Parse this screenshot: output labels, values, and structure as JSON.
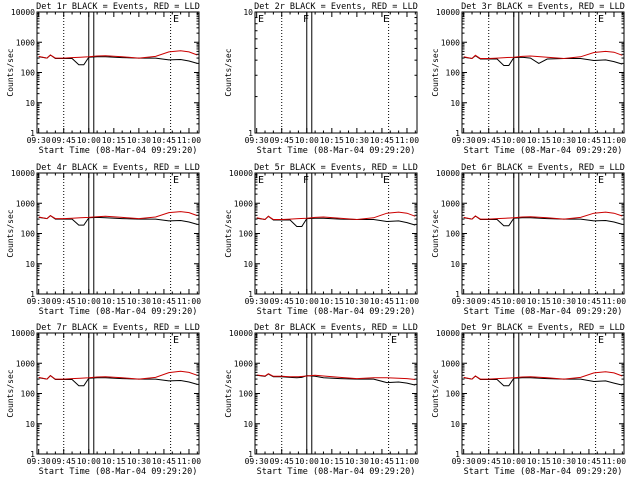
{
  "chart_data": [
    {
      "type": "line",
      "title": "Det 1r BLACK = Events, RED = LLD",
      "xlabel": "Start Time (08-Mar-04 09:29:20)",
      "ylabel": "Counts/sec",
      "yscale": "log",
      "ylim": [
        1,
        10000
      ],
      "y_ticks": [
        "1",
        "10",
        "100",
        "1000",
        "10000"
      ],
      "x_ticks": [
        "09:30",
        "09:45",
        "10:00",
        "10:15",
        "10:30",
        "10:45",
        "11:00"
      ],
      "vlines_dotted": [
        "09:45",
        "10:49"
      ],
      "vlines_solid": [
        "10:00",
        "10:03"
      ],
      "flags": [
        "E"
      ],
      "series": [
        {
          "color": "#000000",
          "x": [
            "09:30",
            "09:35",
            "09:37",
            "09:40",
            "09:45",
            "09:50",
            "09:54",
            "09:57",
            "10:00",
            "10:05",
            "10:10",
            "10:20",
            "10:30",
            "10:40",
            "10:48",
            "10:55",
            "11:00",
            "11:05"
          ],
          "values": [
            330,
            300,
            380,
            290,
            290,
            290,
            180,
            180,
            320,
            330,
            330,
            310,
            300,
            300,
            260,
            270,
            240,
            200
          ]
        },
        {
          "color": "#cc0000",
          "x": [
            "09:30",
            "09:35",
            "09:37",
            "09:40",
            "09:45",
            "09:50",
            "09:55",
            "10:00",
            "10:05",
            "10:10",
            "10:20",
            "10:30",
            "10:40",
            "10:48",
            "10:55",
            "11:00",
            "11:05"
          ],
          "values": [
            340,
            300,
            380,
            300,
            300,
            310,
            320,
            330,
            350,
            360,
            330,
            300,
            340,
            480,
            520,
            480,
            380
          ]
        }
      ]
    },
    {
      "type": "line",
      "title": "Det 2r BLACK = Events, RED = LLD",
      "xlabel": "Start Time (08-Mar-04 09:29:20)",
      "ylabel": "Counts/sec",
      "yscale": "log",
      "ylim": [
        1,
        10
      ],
      "y_ticks": [
        "1",
        "10"
      ],
      "x_ticks": [
        "09:30",
        "09:45",
        "10:00",
        "10:15",
        "10:30",
        "10:45",
        "11:00"
      ],
      "vlines_dotted": [
        "09:45",
        "10:49"
      ],
      "vlines_solid": [
        "10:00",
        "10:03"
      ],
      "flags": [
        "E",
        "F",
        "E"
      ],
      "series": []
    },
    {
      "type": "line",
      "title": "Det 3r BLACK = Events, RED = LLD",
      "xlabel": "Start Time (08-Mar-04 09:29:20)",
      "ylabel": "Counts/sec",
      "yscale": "log",
      "ylim": [
        1,
        10000
      ],
      "y_ticks": [
        "1",
        "10",
        "100",
        "1000",
        "10000"
      ],
      "x_ticks": [
        "09:30",
        "09:45",
        "10:00",
        "10:15",
        "10:30",
        "10:45",
        "11:00"
      ],
      "vlines_dotted": [
        "09:45",
        "10:49"
      ],
      "vlines_solid": [
        "10:00",
        "10:03"
      ],
      "flags": [
        "E"
      ],
      "series": [
        {
          "color": "#000000",
          "x": [
            "09:30",
            "09:35",
            "09:37",
            "09:40",
            "09:45",
            "09:50",
            "09:54",
            "09:57",
            "10:00",
            "10:05",
            "10:10",
            "10:15",
            "10:20",
            "10:30",
            "10:40",
            "10:48",
            "10:55",
            "11:00",
            "11:05"
          ],
          "values": [
            320,
            290,
            360,
            280,
            280,
            280,
            170,
            170,
            310,
            320,
            300,
            200,
            280,
            290,
            290,
            250,
            260,
            230,
            190
          ]
        },
        {
          "color": "#cc0000",
          "x": [
            "09:30",
            "09:35",
            "09:37",
            "09:40",
            "09:45",
            "09:50",
            "09:55",
            "10:00",
            "10:05",
            "10:10",
            "10:20",
            "10:30",
            "10:40",
            "10:48",
            "10:55",
            "11:00",
            "11:05"
          ],
          "values": [
            330,
            290,
            370,
            290,
            290,
            300,
            310,
            320,
            340,
            350,
            320,
            290,
            330,
            460,
            500,
            470,
            370
          ]
        }
      ]
    },
    {
      "type": "line",
      "title": "Det 4r BLACK = Events, RED = LLD",
      "xlabel": "Start Time (08-Mar-04 09:29:20)",
      "ylabel": "Counts/sec",
      "yscale": "log",
      "ylim": [
        1,
        10000
      ],
      "y_ticks": [
        "1",
        "10",
        "100",
        "1000",
        "10000"
      ],
      "x_ticks": [
        "09:30",
        "09:45",
        "10:00",
        "10:15",
        "10:30",
        "10:45",
        "11:00"
      ],
      "vlines_dotted": [
        "09:45",
        "10:49"
      ],
      "vlines_solid": [
        "10:00",
        "10:03"
      ],
      "flags": [
        "E"
      ],
      "series": [
        {
          "color": "#000000",
          "x": [
            "09:30",
            "09:35",
            "09:37",
            "09:40",
            "09:45",
            "09:50",
            "09:54",
            "09:57",
            "10:00",
            "10:05",
            "10:10",
            "10:20",
            "10:30",
            "10:40",
            "10:48",
            "10:55",
            "11:00",
            "11:05"
          ],
          "values": [
            340,
            310,
            390,
            300,
            300,
            300,
            190,
            190,
            330,
            340,
            330,
            310,
            300,
            300,
            260,
            270,
            240,
            200
          ]
        },
        {
          "color": "#cc0000",
          "x": [
            "09:30",
            "09:35",
            "09:37",
            "09:40",
            "09:45",
            "09:50",
            "09:55",
            "10:00",
            "10:05",
            "10:10",
            "10:20",
            "10:30",
            "10:40",
            "10:48",
            "10:55",
            "11:00",
            "11:05"
          ],
          "values": [
            350,
            310,
            390,
            310,
            310,
            320,
            330,
            340,
            360,
            370,
            340,
            310,
            350,
            490,
            530,
            490,
            390
          ]
        }
      ]
    },
    {
      "type": "line",
      "title": "Det 5r BLACK = Events, RED = LLD",
      "xlabel": "Start Time (08-Mar-04 09:29:20)",
      "ylabel": "Counts/sec",
      "yscale": "log",
      "ylim": [
        1,
        10000
      ],
      "y_ticks": [
        "1",
        "10",
        "100",
        "1000",
        "10000"
      ],
      "x_ticks": [
        "09:30",
        "09:45",
        "10:00",
        "10:15",
        "10:30",
        "10:45",
        "11:00"
      ],
      "vlines_dotted": [
        "09:45",
        "10:49"
      ],
      "vlines_solid": [
        "10:00",
        "10:03"
      ],
      "flags": [
        "E",
        "F",
        "E"
      ],
      "series": [
        {
          "color": "#000000",
          "x": [
            "09:30",
            "09:35",
            "09:37",
            "09:40",
            "09:45",
            "09:50",
            "09:54",
            "09:57",
            "10:00",
            "10:05",
            "10:10",
            "10:20",
            "10:30",
            "10:40",
            "10:48",
            "10:55",
            "11:00",
            "11:05"
          ],
          "values": [
            320,
            290,
            370,
            280,
            280,
            280,
            170,
            170,
            310,
            320,
            320,
            300,
            290,
            290,
            250,
            260,
            230,
            190
          ]
        },
        {
          "color": "#cc0000",
          "x": [
            "09:30",
            "09:35",
            "09:37",
            "09:40",
            "09:45",
            "09:50",
            "09:55",
            "10:00",
            "10:05",
            "10:10",
            "10:20",
            "10:30",
            "10:40",
            "10:48",
            "10:55",
            "11:00",
            "11:05"
          ],
          "values": [
            330,
            290,
            370,
            290,
            290,
            300,
            310,
            320,
            340,
            350,
            320,
            290,
            330,
            470,
            510,
            470,
            370
          ]
        }
      ]
    },
    {
      "type": "line",
      "title": "Det 6r BLACK = Events, RED = LLD",
      "xlabel": "Start Time (08-Mar-04 09:29:20)",
      "ylabel": "Counts/sec",
      "yscale": "log",
      "ylim": [
        1,
        10000
      ],
      "y_ticks": [
        "1",
        "10",
        "100",
        "1000",
        "10000"
      ],
      "x_ticks": [
        "09:30",
        "09:45",
        "10:00",
        "10:15",
        "10:30",
        "10:45",
        "11:00"
      ],
      "vlines_dotted": [
        "09:45",
        "10:49"
      ],
      "vlines_solid": [
        "10:00",
        "10:03"
      ],
      "flags": [
        "E"
      ],
      "series": [
        {
          "color": "#000000",
          "x": [
            "09:30",
            "09:35",
            "09:37",
            "09:40",
            "09:45",
            "09:50",
            "09:54",
            "09:57",
            "10:00",
            "10:05",
            "10:10",
            "10:20",
            "10:30",
            "10:40",
            "10:48",
            "10:55",
            "11:00",
            "11:05"
          ],
          "values": [
            330,
            300,
            380,
            290,
            290,
            290,
            180,
            180,
            320,
            330,
            330,
            310,
            300,
            300,
            260,
            270,
            240,
            200
          ]
        },
        {
          "color": "#cc0000",
          "x": [
            "09:30",
            "09:35",
            "09:37",
            "09:40",
            "09:45",
            "09:50",
            "09:55",
            "10:00",
            "10:05",
            "10:10",
            "10:20",
            "10:30",
            "10:40",
            "10:48",
            "10:55",
            "11:00",
            "11:05"
          ],
          "values": [
            340,
            300,
            380,
            300,
            300,
            310,
            320,
            330,
            350,
            360,
            330,
            300,
            340,
            470,
            510,
            470,
            380
          ]
        }
      ]
    },
    {
      "type": "line",
      "title": "Det 7r BLACK = Events, RED = LLD",
      "xlabel": "Start Time (08-Mar-04 09:29:20)",
      "ylabel": "Counts/sec",
      "yscale": "log",
      "ylim": [
        1,
        10000
      ],
      "y_ticks": [
        "1",
        "10",
        "100",
        "1000",
        "10000"
      ],
      "x_ticks": [
        "09:30",
        "09:45",
        "10:00",
        "10:15",
        "10:30",
        "10:45",
        "11:00"
      ],
      "vlines_dotted": [
        "09:45",
        "10:49"
      ],
      "vlines_solid": [
        "10:00",
        "10:03"
      ],
      "flags": [
        "E"
      ],
      "series": [
        {
          "color": "#000000",
          "x": [
            "09:30",
            "09:35",
            "09:37",
            "09:40",
            "09:45",
            "09:50",
            "09:54",
            "09:57",
            "10:00",
            "10:05",
            "10:10",
            "10:20",
            "10:30",
            "10:40",
            "10:48",
            "10:55",
            "11:00",
            "11:05"
          ],
          "values": [
            330,
            300,
            390,
            290,
            290,
            290,
            180,
            180,
            320,
            330,
            330,
            310,
            300,
            300,
            260,
            270,
            240,
            200
          ]
        },
        {
          "color": "#cc0000",
          "x": [
            "09:30",
            "09:35",
            "09:37",
            "09:40",
            "09:45",
            "09:50",
            "09:55",
            "10:00",
            "10:05",
            "10:10",
            "10:20",
            "10:30",
            "10:40",
            "10:48",
            "10:55",
            "11:00",
            "11:05"
          ],
          "values": [
            340,
            300,
            390,
            300,
            300,
            310,
            320,
            330,
            350,
            360,
            330,
            300,
            340,
            490,
            540,
            500,
            400
          ]
        }
      ]
    },
    {
      "type": "line",
      "title": "Det 8r BLACK = Events, RED = LLD",
      "xlabel": "Start Time (08-Mar-04 09:29:20)",
      "ylabel": "Counts/sec",
      "yscale": "log",
      "ylim": [
        1,
        10000
      ],
      "y_ticks": [
        "1",
        "10",
        "100",
        "1000",
        "10000"
      ],
      "x_ticks": [
        "09:30",
        "09:45",
        "10:00",
        "10:15",
        "10:30",
        "10:45",
        "11:00"
      ],
      "vlines_dotted": [
        "09:45",
        "10:49"
      ],
      "vlines_solid": [
        "10:00",
        "10:03"
      ],
      "flags": [
        "E"
      ],
      "series": [
        {
          "color": "#000000",
          "x": [
            "09:30",
            "09:35",
            "09:37",
            "09:40",
            "09:45",
            "09:50",
            "09:54",
            "09:57",
            "10:00",
            "10:05",
            "10:10",
            "10:20",
            "10:30",
            "10:40",
            "10:48",
            "10:55",
            "11:00",
            "11:05"
          ],
          "values": [
            400,
            370,
            440,
            360,
            360,
            340,
            330,
            340,
            390,
            370,
            330,
            310,
            300,
            300,
            230,
            240,
            220,
            190
          ]
        },
        {
          "color": "#cc0000",
          "x": [
            "09:30",
            "09:35",
            "09:37",
            "09:40",
            "09:45",
            "09:50",
            "09:55",
            "10:00",
            "10:05",
            "10:10",
            "10:20",
            "10:30",
            "10:40",
            "10:48",
            "10:55",
            "11:00",
            "11:05"
          ],
          "values": [
            410,
            380,
            450,
            370,
            370,
            360,
            360,
            380,
            400,
            380,
            340,
            310,
            330,
            330,
            320,
            310,
            290
          ]
        }
      ]
    },
    {
      "type": "line",
      "title": "Det 9r BLACK = Events, RED = LLD",
      "xlabel": "Start Time (08-Mar-04 09:29:20)",
      "ylabel": "Counts/sec",
      "yscale": "log",
      "ylim": [
        1,
        10000
      ],
      "y_ticks": [
        "1",
        "10",
        "100",
        "1000",
        "10000"
      ],
      "x_ticks": [
        "09:30",
        "09:45",
        "10:00",
        "10:15",
        "10:30",
        "10:45",
        "11:00"
      ],
      "vlines_dotted": [
        "09:45",
        "10:49"
      ],
      "vlines_solid": [
        "10:00",
        "10:03"
      ],
      "flags": [
        "E"
      ],
      "series": [
        {
          "color": "#000000",
          "x": [
            "09:30",
            "09:35",
            "09:37",
            "09:40",
            "09:45",
            "09:50",
            "09:54",
            "09:57",
            "10:00",
            "10:05",
            "10:10",
            "10:20",
            "10:30",
            "10:40",
            "10:48",
            "10:55",
            "11:00",
            "11:05"
          ],
          "values": [
            330,
            300,
            380,
            290,
            290,
            290,
            180,
            180,
            320,
            330,
            330,
            310,
            300,
            300,
            250,
            260,
            220,
            190
          ]
        },
        {
          "color": "#cc0000",
          "x": [
            "09:30",
            "09:35",
            "09:37",
            "09:40",
            "09:45",
            "09:50",
            "09:55",
            "10:00",
            "10:05",
            "10:10",
            "10:20",
            "10:30",
            "10:40",
            "10:48",
            "10:55",
            "11:00",
            "11:05"
          ],
          "values": [
            340,
            300,
            380,
            300,
            300,
            310,
            320,
            330,
            350,
            360,
            330,
            300,
            340,
            480,
            520,
            480,
            380
          ]
        }
      ]
    }
  ]
}
